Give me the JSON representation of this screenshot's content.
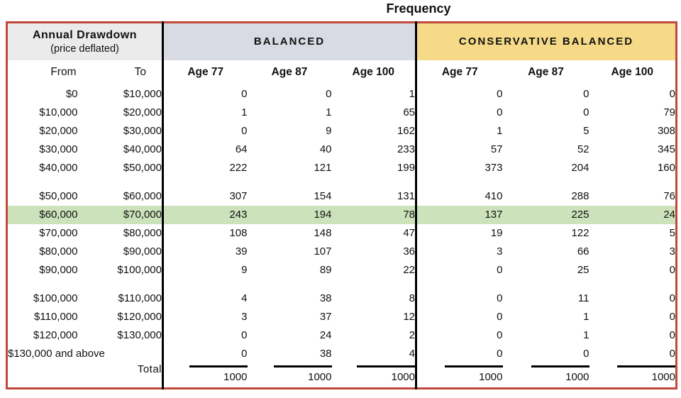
{
  "chart_data": {
    "type": "table",
    "title": "Frequency",
    "row_label_header": [
      "Annual Drawdown",
      "(price deflated)"
    ],
    "column_groups": [
      "BALANCED",
      "CONSERVATIVE BALANCED"
    ],
    "columns": [
      "From",
      "To",
      "Age 77",
      "Age 87",
      "Age 100",
      "Age 77",
      "Age 87",
      "Age 100"
    ],
    "row_groups": [
      {
        "rows": [
          {
            "from": "$0",
            "to": "$10,000",
            "values": [
              0,
              0,
              1,
              0,
              0,
              0
            ]
          },
          {
            "from": "$10,000",
            "to": "$20,000",
            "values": [
              1,
              1,
              65,
              0,
              0,
              79
            ]
          },
          {
            "from": "$20,000",
            "to": "$30,000",
            "values": [
              0,
              9,
              162,
              1,
              5,
              308
            ]
          },
          {
            "from": "$30,000",
            "to": "$40,000",
            "values": [
              64,
              40,
              233,
              57,
              52,
              345
            ]
          },
          {
            "from": "$40,000",
            "to": "$50,000",
            "values": [
              222,
              121,
              199,
              373,
              204,
              160
            ]
          }
        ]
      },
      {
        "rows": [
          {
            "from": "$50,000",
            "to": "$60,000",
            "values": [
              307,
              154,
              131,
              410,
              288,
              76
            ]
          },
          {
            "from": "$60,000",
            "to": "$70,000",
            "values": [
              243,
              194,
              78,
              137,
              225,
              24
            ],
            "highlight": true
          },
          {
            "from": "$70,000",
            "to": "$80,000",
            "values": [
              108,
              148,
              47,
              19,
              122,
              5
            ]
          },
          {
            "from": "$80,000",
            "to": "$90,000",
            "values": [
              39,
              107,
              36,
              3,
              66,
              3
            ]
          },
          {
            "from": "$90,000",
            "to": "$100,000",
            "values": [
              9,
              89,
              22,
              0,
              25,
              0
            ]
          }
        ]
      },
      {
        "rows": [
          {
            "from": "$100,000",
            "to": "$110,000",
            "values": [
              4,
              38,
              8,
              0,
              11,
              0
            ]
          },
          {
            "from": "$110,000",
            "to": "$120,000",
            "values": [
              3,
              37,
              12,
              0,
              1,
              0
            ]
          },
          {
            "from": "$120,000",
            "to": "$130,000",
            "values": [
              0,
              24,
              2,
              0,
              1,
              0
            ]
          },
          {
            "from": "$130,000 and above",
            "to": "",
            "values": [
              0,
              38,
              4,
              0,
              0,
              0
            ],
            "label_spans_both": true
          }
        ]
      }
    ],
    "total_row": {
      "label": "Total",
      "values": [
        1000,
        1000,
        1000,
        1000,
        1000,
        1000
      ]
    }
  },
  "colors": {
    "frame_red": "#c2483b",
    "balanced_header_bg": "#d8dae4",
    "conservative_header_bg": "#f6da88",
    "label_header_bg": "#ebebeb",
    "highlight_green": "#cbe2ba",
    "divider_black": "#000000"
  }
}
